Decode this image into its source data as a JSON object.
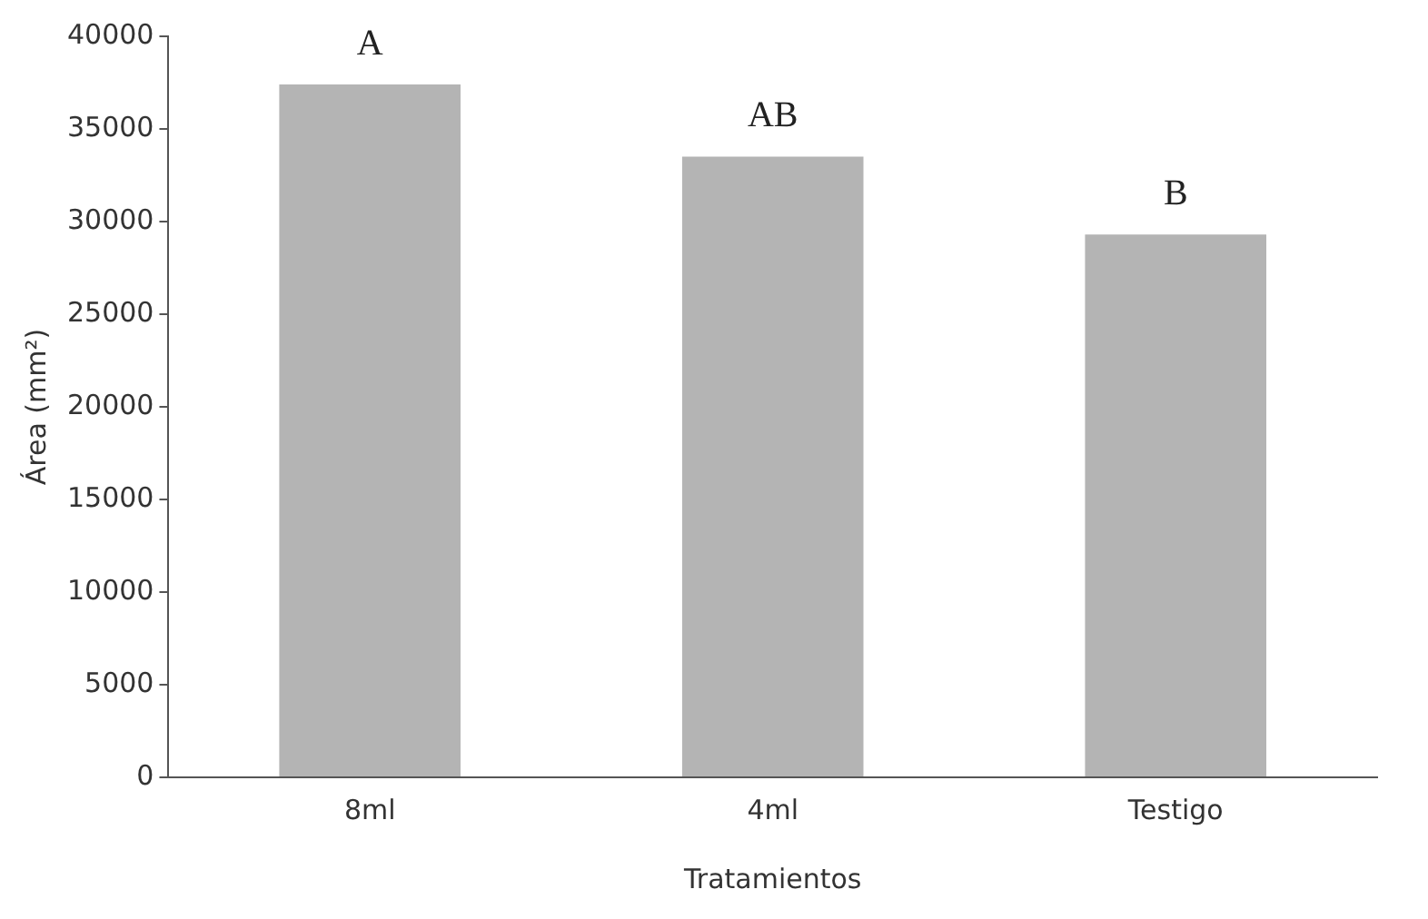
{
  "chart_data": {
    "type": "bar",
    "xlabel": "Tratamientos",
    "ylabel": "Área (mm²)",
    "categories": [
      "8ml",
      "4ml",
      "Testigo"
    ],
    "values": [
      37400,
      33500,
      29300
    ],
    "color": "#b4b4b4",
    "ylim": [
      0,
      40000
    ],
    "yticks": [
      0,
      5000,
      10000,
      15000,
      20000,
      25000,
      30000,
      35000,
      40000
    ],
    "grid": false,
    "legend": false,
    "annotations": [
      "A",
      "AB",
      "B"
    ]
  }
}
